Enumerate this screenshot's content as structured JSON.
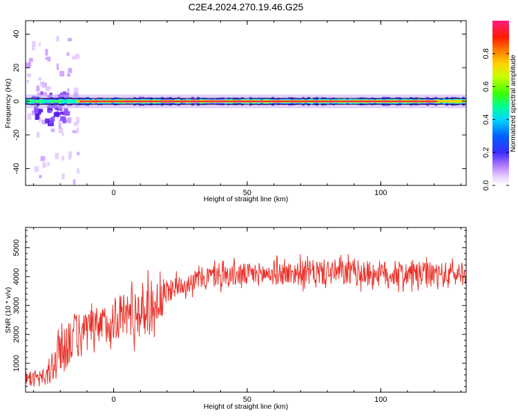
{
  "title": "C2E4.2024.270.19.46.G25",
  "colors": {
    "snr_line": "#e8322a",
    "ridge_core": "#ff2a4a",
    "ridge_halo": "#00ffd0",
    "noise": "#7b2cff"
  },
  "chart_data": [
    {
      "id": "spectrogram",
      "type": "heatmap",
      "xlabel": "Height of straight line (km)",
      "ylabel": "Frequency (Hz)",
      "xlim": [
        -33,
        132
      ],
      "ylim": [
        -50,
        48
      ],
      "xticks": [
        "0",
        "50",
        "100"
      ],
      "xtick_values": [
        0,
        50,
        100
      ],
      "yticks": [
        "40",
        "20",
        "0",
        "-20",
        "-40"
      ],
      "ytick_values": [
        40,
        20,
        0,
        -20,
        -40
      ],
      "ridge_frequency_hz": 0,
      "colorbar": {
        "label": "Normalized spectral amplitude",
        "range": [
          0,
          1
        ],
        "ticks": [
          "0.0",
          "0.2",
          "0.4",
          "0.6",
          "0.8"
        ],
        "tick_values": [
          0,
          0.2,
          0.4,
          0.6,
          0.8
        ],
        "colormap": "rainbow (white/violet at 0 to magenta-red at 1)"
      }
    },
    {
      "id": "snr",
      "type": "line",
      "xlabel": "Height of straight line (km)",
      "ylabel": "SNR (10 * v/v)",
      "xlim": [
        -33,
        132
      ],
      "ylim": [
        0,
        5700
      ],
      "xticks": [
        "0",
        "50",
        "100"
      ],
      "xtick_values": [
        0,
        50,
        100
      ],
      "yticks": [
        "1000",
        "2000",
        "3000",
        "4000",
        "5000"
      ],
      "ytick_values": [
        1000,
        2000,
        3000,
        4000,
        5000
      ],
      "trend": {
        "x": [
          -33,
          -29,
          -25,
          -21,
          -17,
          -12,
          -7,
          -2,
          3,
          8,
          13,
          18,
          22,
          28,
          35,
          45,
          60,
          80,
          100,
          120,
          132
        ],
        "y": [
          600,
          450,
          500,
          1300,
          1800,
          2000,
          2200,
          2400,
          2700,
          2750,
          2900,
          3200,
          3600,
          3800,
          4000,
          4050,
          4100,
          4150,
          4100,
          4050,
          4100
        ]
      },
      "spread": {
        "x": [
          -33,
          -29,
          -25,
          -21,
          -17,
          -12,
          -7,
          -2,
          3,
          8,
          13,
          18,
          22,
          28,
          35,
          45,
          60,
          80,
          100,
          120,
          132
        ],
        "y": [
          200,
          200,
          400,
          900,
          900,
          800,
          700,
          700,
          800,
          900,
          1000,
          700,
          350,
          350,
          400,
          400,
          400,
          450,
          450,
          450,
          400
        ]
      }
    }
  ]
}
